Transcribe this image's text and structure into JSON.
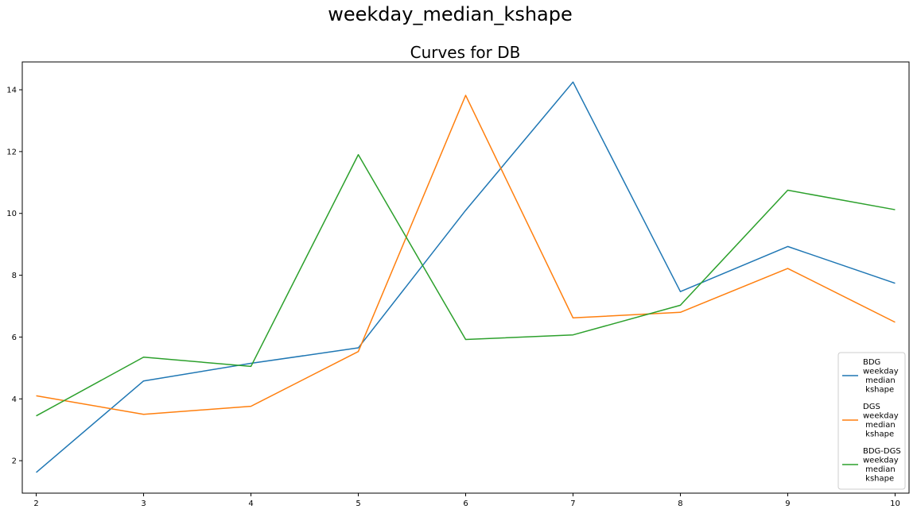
{
  "figure": {
    "suptitle": "weekday_median_kshape"
  },
  "chart_data": {
    "type": "line",
    "title": "Curves for DB",
    "xlabel": "",
    "ylabel": "",
    "x": [
      2,
      3,
      4,
      5,
      6,
      7,
      8,
      9,
      10
    ],
    "xticks": [
      "2",
      "3",
      "4",
      "5",
      "6",
      "7",
      "8",
      "9",
      "10"
    ],
    "yticks": [
      "2",
      "4",
      "6",
      "8",
      "10",
      "12",
      "14"
    ],
    "xlim": [
      1.87,
      10.13
    ],
    "ylim": [
      0.95,
      14.9
    ],
    "grid": false,
    "legend_position": "lower right",
    "series": [
      {
        "name": "BDG\nweekday\n median\n kshape",
        "color": "#1f77b4",
        "values": [
          1.62,
          4.58,
          5.15,
          5.65,
          10.1,
          14.25,
          7.47,
          8.93,
          7.74
        ]
      },
      {
        "name": "DGS\nweekday\n median\n kshape",
        "color": "#ff7f0e",
        "values": [
          4.1,
          3.5,
          3.76,
          5.53,
          13.82,
          6.62,
          6.8,
          8.22,
          6.48
        ]
      },
      {
        "name": "BDG-DGS\nweekday\n median\n kshape",
        "color": "#2ca02c",
        "values": [
          3.45,
          5.35,
          5.05,
          11.9,
          5.92,
          6.07,
          7.03,
          10.75,
          10.12
        ]
      }
    ]
  }
}
